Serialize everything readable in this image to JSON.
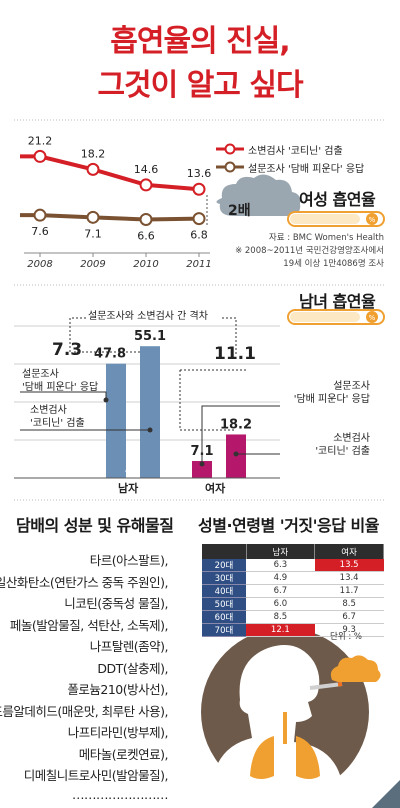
{
  "headline": {
    "line1": "흡연율의 진실,",
    "line2": "그것이 알고 싶다"
  },
  "women_trend": {
    "title": "여성 흡연율",
    "legend": [
      "소변검사 '코티닌' 검출",
      "설문조사 '담배 피운다' 응답"
    ],
    "badge": "2배",
    "source": "자료 : BMC Women's Health",
    "note1": "※ 2008~2011년 국민건강영양조사에서",
    "note2": "19세 이상 1만4086명 조사"
  },
  "gender_compare": {
    "title": "남녀 흡연율",
    "gap_label": "설문조사와 소변검사 간 격차",
    "male_gap": "7.3",
    "female_gap": "11.1",
    "label_survey_male_1": "설문조사",
    "label_survey_male_2": "'담배 피운다' 응답",
    "label_urine_male_1": "소변검사",
    "label_urine_male_2": "'코티닌' 검출",
    "label_survey_female_1": "설문조사",
    "label_survey_female_2": "'담배 피운다' 응답",
    "label_urine_female_1": "소변검사",
    "label_urine_female_2": "'코티닌' 검출",
    "x_male": "남자",
    "x_female": "여자"
  },
  "colors": {
    "red": "#d51f26",
    "brown": "#7a5232",
    "steel": "#6c8fb5",
    "magenta": "#b5176b",
    "navy": "#2f4f84",
    "orange": "#f0a030"
  },
  "chart_data": [
    {
      "type": "line",
      "x": [
        "2008",
        "2009",
        "2010",
        "2011"
      ],
      "series": [
        {
          "name": "소변검사 '코티닌' 검출",
          "values": [
            21.2,
            18.2,
            14.6,
            13.6
          ]
        },
        {
          "name": "설문조사 '담배 피운다' 응답",
          "values": [
            7.6,
            7.1,
            6.6,
            6.8
          ]
        }
      ],
      "title": "여성 흡연율",
      "ylim": [
        0,
        25
      ],
      "grid": false,
      "legend": "top-right"
    },
    {
      "type": "bar",
      "categories": [
        "남자",
        "여자"
      ],
      "series": [
        {
          "name": "설문조사 '담배 피운다' 응답",
          "values": [
            47.8,
            7.1
          ]
        },
        {
          "name": "소변검사 '코티닌' 검출",
          "values": [
            55.1,
            18.2
          ]
        }
      ],
      "title": "남녀 흡연율",
      "ylim": [
        0,
        60
      ],
      "grid": true
    },
    {
      "type": "table",
      "title": "성별·연령별 '거짓'응답 비율",
      "columns": [
        "",
        "남자",
        "여자"
      ],
      "rows": [
        {
          "age": "20대",
          "male": "6.3",
          "female": "13.5"
        },
        {
          "age": "30대",
          "male": "4.9",
          "female": "13.4"
        },
        {
          "age": "40대",
          "male": "6.7",
          "female": "11.7"
        },
        {
          "age": "50대",
          "male": "6.0",
          "female": "8.5"
        },
        {
          "age": "60대",
          "male": "8.5",
          "female": "6.7"
        },
        {
          "age": "70대",
          "male": "12.1",
          "female": "9.3"
        }
      ],
      "highlight": [
        [
          0,
          "female"
        ],
        [
          5,
          "male"
        ]
      ],
      "unit": "단위 : %"
    }
  ],
  "substances": {
    "title": "담배의 성분 및 유해물질",
    "items": [
      "타르(아스팔트),",
      "일산화탄소(연탄가스 중독 주원인),",
      "니코틴(중독성 물질),",
      "페놀(발암물질, 석탄산, 소독제),",
      "나프탈렌(좀약),",
      "DDT(살충제),",
      "폴로늄210(방사선),",
      "포름알데히드(매운맛, 최루탄 사용),",
      "나프티라민(방부제),",
      "메타놀(로켓연료),",
      "디메칠니트로사민(발암물질),",
      "……………………"
    ]
  }
}
